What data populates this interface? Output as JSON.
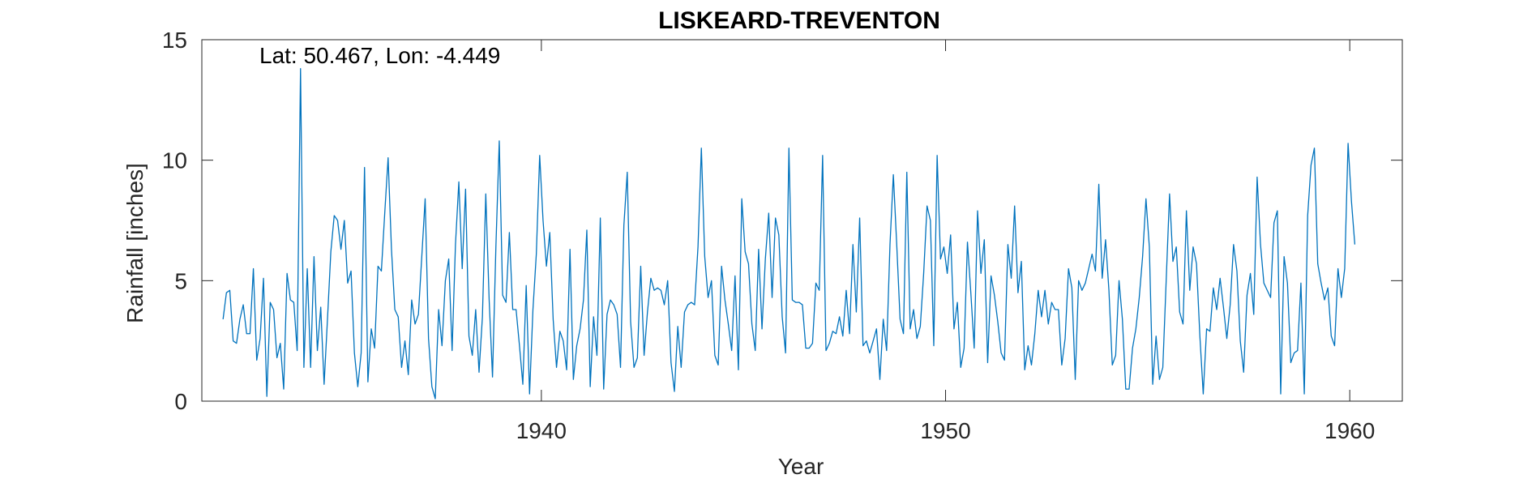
{
  "chart_data": {
    "type": "line",
    "title": "LISKEARD-TREVENTON",
    "xlabel": "Year",
    "ylabel": "Rainfall [inches]",
    "annotation": "Lat: 50.467, Lon: -4.449",
    "xlim": [
      1931.6,
      1961.3
    ],
    "ylim": [
      0,
      15
    ],
    "xticks": [
      1940,
      1950,
      1960
    ],
    "yticks": [
      0,
      5,
      10,
      15
    ],
    "grid": false,
    "legend": "none",
    "line_color": "#0072BD",
    "series": [
      {
        "x_start": 1932.125,
        "x_step": 0.0833333,
        "values": [
          3.4,
          4.5,
          4.6,
          2.5,
          2.4,
          3.4,
          4.0,
          2.8,
          2.8,
          5.5,
          1.7,
          2.6,
          5.1,
          0.2,
          4.1,
          3.8,
          1.8,
          2.4,
          0.5,
          5.3,
          4.2,
          4.1,
          2.1,
          13.8,
          1.4,
          5.5,
          1.4,
          6.0,
          2.1,
          3.9,
          0.7,
          3.4,
          6.2,
          7.7,
          7.5,
          6.3,
          7.5,
          4.9,
          5.4,
          2.0,
          0.6,
          2.0,
          9.7,
          0.8,
          3.0,
          2.2,
          5.6,
          5.4,
          7.8,
          10.1,
          6.3,
          3.8,
          3.5,
          1.4,
          2.5,
          1.1,
          4.2,
          3.2,
          3.6,
          6.0,
          8.4,
          2.6,
          0.6,
          0.1,
          3.8,
          2.3,
          5.0,
          5.9,
          2.1,
          6.5,
          9.1,
          5.5,
          8.8,
          2.7,
          1.9,
          3.8,
          1.2,
          3.5,
          8.6,
          4.2,
          1.0,
          6.4,
          10.8,
          4.4,
          4.1,
          7.0,
          3.8,
          3.8,
          2.3,
          0.7,
          4.8,
          0.3,
          3.8,
          6.1,
          10.2,
          7.5,
          5.6,
          7.0,
          3.4,
          1.4,
          2.9,
          2.5,
          1.3,
          6.3,
          0.9,
          2.3,
          3.0,
          4.2,
          7.1,
          0.6,
          3.5,
          1.9,
          7.6,
          0.5,
          3.6,
          4.2,
          4.0,
          3.6,
          1.4,
          7.3,
          9.5,
          3.3,
          1.4,
          1.8,
          5.6,
          1.9,
          3.7,
          5.1,
          4.6,
          4.7,
          4.6,
          4.0,
          5.0,
          1.6,
          0.4,
          3.1,
          1.4,
          3.7,
          4.0,
          4.1,
          4.0,
          6.4,
          10.5,
          6.0,
          4.3,
          5.0,
          1.9,
          1.5,
          5.6,
          4.2,
          3.2,
          2.1,
          5.2,
          1.3,
          8.4,
          6.2,
          5.7,
          3.2,
          2.1,
          6.3,
          3.0,
          5.9,
          7.8,
          4.3,
          7.6,
          6.9,
          3.5,
          2.0,
          10.5,
          4.2,
          4.1,
          4.1,
          4.0,
          2.2,
          2.2,
          2.4,
          4.9,
          4.6,
          10.2,
          2.1,
          2.4,
          2.9,
          2.8,
          3.5,
          2.7,
          4.6,
          2.8,
          6.5,
          3.7,
          7.6,
          2.3,
          2.5,
          2.0,
          2.5,
          3.0,
          0.9,
          3.4,
          2.1,
          6.5,
          9.4,
          6.5,
          3.4,
          2.8,
          9.5,
          3.0,
          3.8,
          2.6,
          3.1,
          5.3,
          8.1,
          7.5,
          2.3,
          10.2,
          5.9,
          6.4,
          5.3,
          6.9,
          3.0,
          4.1,
          1.4,
          2.2,
          6.6,
          4.5,
          2.2,
          7.9,
          5.3,
          6.7,
          1.6,
          5.2,
          4.4,
          3.3,
          2.0,
          1.7,
          6.5,
          5.1,
          8.1,
          4.5,
          5.8,
          1.3,
          2.3,
          1.5,
          2.8,
          4.6,
          3.5,
          4.6,
          3.2,
          4.1,
          3.8,
          3.8,
          1.5,
          2.6,
          5.5,
          4.7,
          0.9,
          5.0,
          4.6,
          4.9,
          5.5,
          6.1,
          5.4,
          9.0,
          5.1,
          6.7,
          4.6,
          1.5,
          1.9,
          5.0,
          3.4,
          0.5,
          0.5,
          2.2,
          3.0,
          4.3,
          6.0,
          8.4,
          6.4,
          0.7,
          2.7,
          0.9,
          1.4,
          5.0,
          8.6,
          5.8,
          6.4,
          3.7,
          3.2,
          7.9,
          4.6,
          6.4,
          5.7,
          2.7,
          0.3,
          3.0,
          2.9,
          4.7,
          3.8,
          5.1,
          3.9,
          2.6,
          4.0,
          6.5,
          5.4,
          2.5,
          1.2,
          4.4,
          5.3,
          3.6,
          9.3,
          6.5,
          4.9,
          4.6,
          4.3,
          7.4,
          7.9,
          0.3,
          6.0,
          4.9,
          1.6,
          2.0,
          2.1,
          4.9,
          0.3,
          7.7,
          9.8,
          10.5,
          5.7,
          4.9,
          4.2,
          4.7,
          2.7,
          2.3,
          5.5,
          4.3,
          5.5,
          10.7,
          8.3,
          6.5
        ]
      }
    ]
  }
}
